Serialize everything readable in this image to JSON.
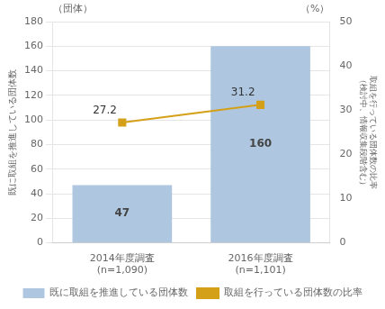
{
  "chart_data": {
    "type": "bar",
    "categories": [
      "2014年度調査\n(n=1,090)",
      "2016年度調査\n(n=1,101)"
    ],
    "series": [
      {
        "name": "既に取組を推進している団体数",
        "type": "bar",
        "color": "#aec6e0",
        "values": [
          47,
          160
        ]
      },
      {
        "name": "取組を行っている団体数の比率",
        "type": "line",
        "color": "#d4a017",
        "marker": "square",
        "axis": "y2",
        "values": [
          27.2,
          31.2
        ]
      }
    ],
    "y_label": "既に取組を推進している団体数",
    "y2_label": "取組を行っている団体数の比率\n（検討中、情報収集段階含む）",
    "annotations": [
      {
        "text": "（団体）",
        "axis": "y"
      },
      {
        "text": "（%）",
        "axis": "y2"
      }
    ],
    "ylim": [
      0,
      180
    ],
    "yticks": [
      0,
      20,
      40,
      60,
      80,
      100,
      120,
      140,
      160,
      180
    ],
    "y2lim": [
      0,
      50
    ],
    "y2ticks": [
      0,
      10,
      20,
      30,
      40,
      50
    ],
    "grid": true,
    "data_labels": true,
    "legend": "bottom"
  }
}
